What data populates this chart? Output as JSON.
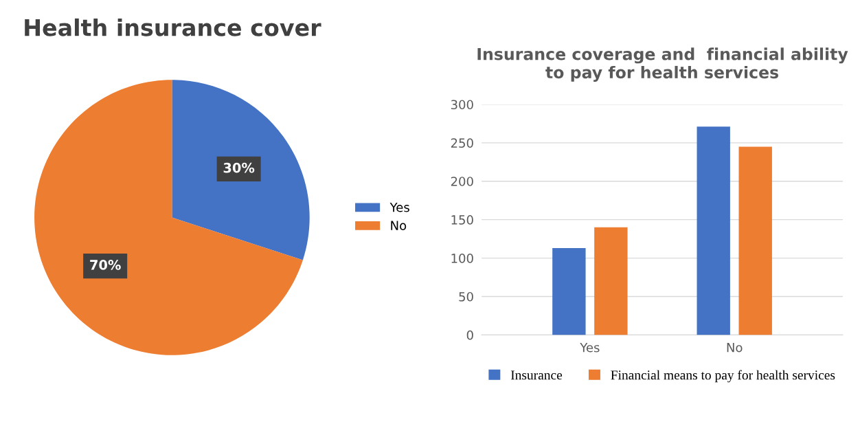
{
  "chart_data": [
    {
      "type": "pie",
      "title": "Health insurance cover",
      "categories": [
        "Yes",
        "No"
      ],
      "values": [
        30,
        70
      ],
      "colors": [
        "#4472c4",
        "#ed7d31"
      ],
      "value_labels": [
        "30%",
        "70%"
      ],
      "legend": "right"
    },
    {
      "type": "bar",
      "title": "Insurance coverage and  financial ability to pay for health services",
      "categories": [
        "Yes",
        "No"
      ],
      "series": [
        {
          "name": "Insurance",
          "color": "#4472c4",
          "values": [
            113,
            271
          ]
        },
        {
          "name": "Financial means to pay for health services",
          "color": "#ed7d31",
          "values": [
            140,
            245
          ]
        }
      ],
      "ylim": [
        0,
        300
      ],
      "yticks": [
        0,
        50,
        100,
        150,
        200,
        250,
        300
      ],
      "grid": "y",
      "legend": "bottom"
    }
  ]
}
